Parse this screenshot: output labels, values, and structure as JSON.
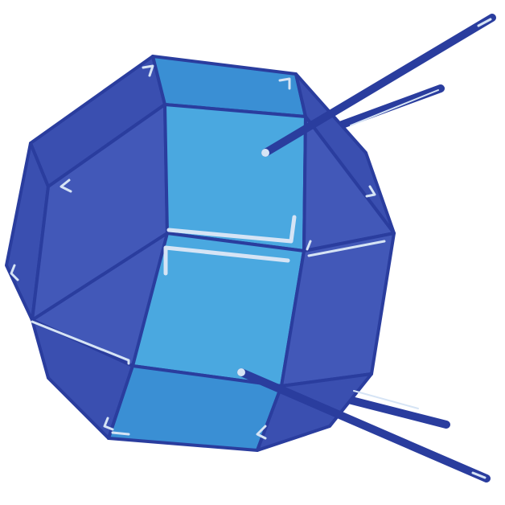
{
  "illustration": {
    "subject": "satellite-icon",
    "colors": {
      "outline": "#2a3d9e",
      "face_dark": "#3a4fb0",
      "face_mid": "#4258b8",
      "face_light": "#4aa8e0",
      "face_top": "#3a8fd4",
      "highlight": "#d6e4f5",
      "background": "#ffffff"
    }
  }
}
